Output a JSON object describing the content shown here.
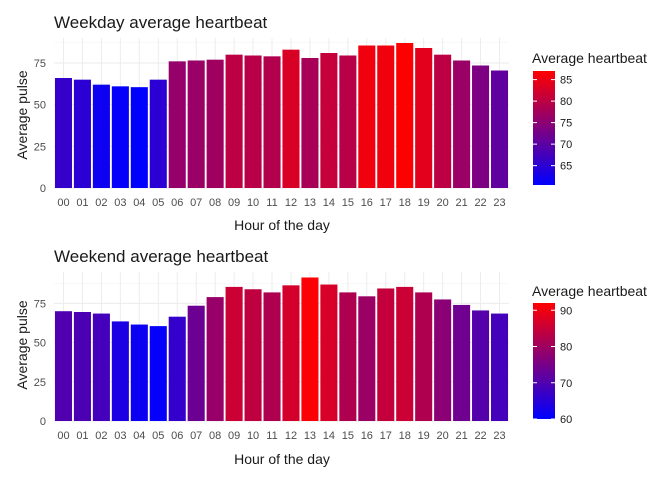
{
  "chart_data": [
    {
      "type": "bar",
      "title": "Weekday average heartbeat",
      "xlabel": "Hour of the day",
      "ylabel": "Average pulse",
      "categories": [
        "00",
        "01",
        "02",
        "03",
        "04",
        "05",
        "06",
        "07",
        "08",
        "09",
        "10",
        "11",
        "12",
        "13",
        "14",
        "15",
        "16",
        "17",
        "18",
        "19",
        "20",
        "21",
        "22",
        "23"
      ],
      "values": [
        66,
        65,
        62,
        61,
        60.5,
        65,
        76,
        76.5,
        77,
        80,
        79.5,
        79,
        83,
        78,
        81,
        79.5,
        85.5,
        85.5,
        87,
        84,
        80,
        76.5,
        73.5,
        70.5
      ],
      "ylim": [
        0,
        90
      ],
      "yticks": [
        0,
        25,
        50,
        75
      ],
      "grid": true,
      "legend": {
        "title": "Average heartbeat",
        "placement": "right",
        "ticks": [
          65,
          70,
          75,
          80,
          85
        ],
        "range": [
          60.5,
          87
        ],
        "colors": [
          "#0000ff",
          "#ff0000"
        ]
      }
    },
    {
      "type": "bar",
      "title": "Weekend average heartbeat",
      "xlabel": "Hour of the day",
      "ylabel": "Average pulse",
      "categories": [
        "00",
        "01",
        "02",
        "03",
        "04",
        "05",
        "06",
        "07",
        "08",
        "09",
        "10",
        "11",
        "12",
        "13",
        "14",
        "15",
        "16",
        "17",
        "18",
        "19",
        "20",
        "21",
        "22",
        "23"
      ],
      "values": [
        70,
        69.5,
        68.5,
        63.5,
        61.5,
        60.5,
        66.5,
        73.5,
        79,
        85.5,
        84,
        82,
        86.5,
        91.5,
        87,
        82,
        79.5,
        84.5,
        85.5,
        82,
        77.5,
        74,
        70.5,
        68.5
      ],
      "ylim": [
        0,
        95
      ],
      "yticks": [
        0,
        25,
        50,
        75
      ],
      "grid": true,
      "legend": {
        "title": "Average heartbeat",
        "placement": "right",
        "ticks": [
          60,
          70,
          80,
          90
        ],
        "range": [
          60,
          92
        ],
        "colors": [
          "#0000ff",
          "#ff0000"
        ]
      }
    }
  ]
}
